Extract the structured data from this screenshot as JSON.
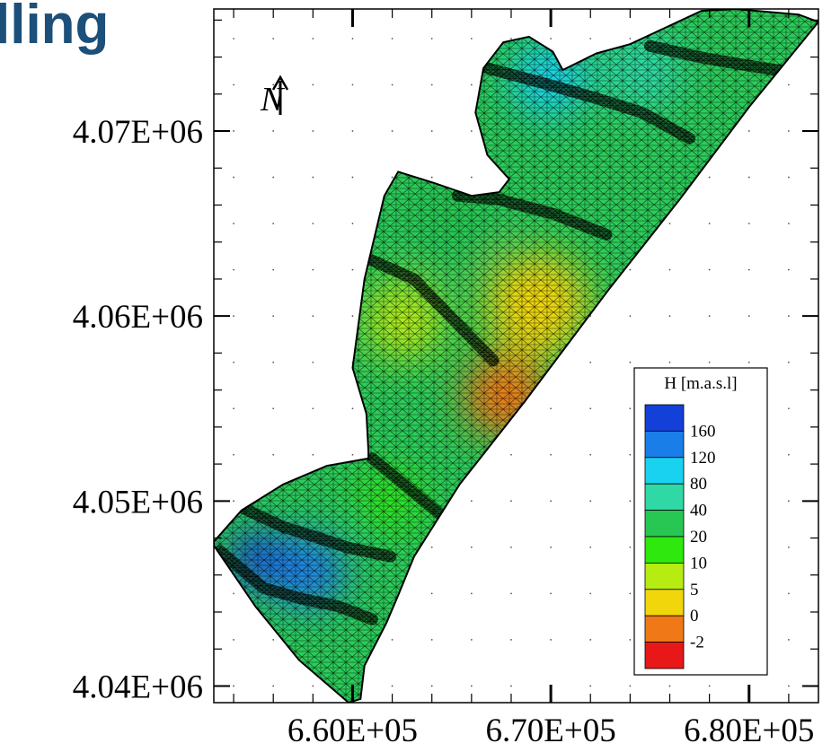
{
  "slide": {
    "title_fragment": "lling"
  },
  "colors": {
    "title": "#1c4f79",
    "mesh_line": "#000000",
    "background": "#ffffff"
  },
  "chart_data": {
    "type": "heatmap",
    "title": "",
    "xlabel": "",
    "ylabel": "",
    "xlim": [
      653000,
      683500
    ],
    "ylim": [
      4039100,
      4076600
    ],
    "x_ticks": [
      {
        "value": 660000,
        "label": "6.60E+05"
      },
      {
        "value": 670000,
        "label": "6.70E+05"
      },
      {
        "value": 680000,
        "label": "6.80E+05"
      }
    ],
    "y_ticks": [
      {
        "value": 4040000,
        "label": "4.04E+06"
      },
      {
        "value": 4050000,
        "label": "4.05E+06"
      },
      {
        "value": 4060000,
        "label": "4.06E+06"
      },
      {
        "value": 4070000,
        "label": "4.07E+06"
      }
    ],
    "grid": true,
    "grid_style": "dotted points",
    "north_arrow_label": "N",
    "legend": {
      "title": "H [m.a.s.l]",
      "placement": "bottom-right",
      "entries": [
        {
          "label": "160",
          "color": "#1340d8"
        },
        {
          "label": "120",
          "color": "#1a7ee8"
        },
        {
          "label": "80",
          "color": "#18d2f0"
        },
        {
          "label": "40",
          "color": "#2fd8a4"
        },
        {
          "label": "20",
          "color": "#28c652"
        },
        {
          "label": "10",
          "color": "#2ee80e"
        },
        {
          "label": "5",
          "color": "#b6ec12"
        },
        {
          "label": "0",
          "color": "#f2d60c"
        },
        {
          "label": "-2",
          "color": "#f07816"
        },
        {
          "label": "",
          "color": "#e81818"
        }
      ]
    },
    "domain_outline_xy": [
      [
        653000,
        4047800
      ],
      [
        654400,
        4049500
      ],
      [
        656500,
        4050900
      ],
      [
        658700,
        4051900
      ],
      [
        660800,
        4052300
      ],
      [
        660800,
        4052700
      ],
      [
        660700,
        4054700
      ],
      [
        660000,
        4057200
      ],
      [
        660600,
        4062000
      ],
      [
        661600,
        4066500
      ],
      [
        662300,
        4067800
      ],
      [
        664100,
        4067200
      ],
      [
        666000,
        4066500
      ],
      [
        667400,
        4066700
      ],
      [
        667900,
        4067400
      ],
      [
        666800,
        4068700
      ],
      [
        666200,
        4071000
      ],
      [
        666600,
        4073400
      ],
      [
        667600,
        4074800
      ],
      [
        668900,
        4075100
      ],
      [
        670100,
        4074300
      ],
      [
        670600,
        4073300
      ],
      [
        672300,
        4074200
      ],
      [
        674000,
        4074700
      ],
      [
        675800,
        4075600
      ],
      [
        677600,
        4076500
      ],
      [
        679300,
        4076600
      ],
      [
        682500,
        4076300
      ],
      [
        683500,
        4075900
      ],
      [
        680000,
        4071300
      ],
      [
        676500,
        4066300
      ],
      [
        672900,
        4061400
      ],
      [
        668700,
        4055400
      ],
      [
        665400,
        4050900
      ],
      [
        663100,
        4047000
      ],
      [
        662300,
        4044900
      ],
      [
        661700,
        4043400
      ],
      [
        660600,
        4041100
      ],
      [
        660400,
        4039300
      ],
      [
        659800,
        4039100
      ],
      [
        657300,
        4041400
      ],
      [
        655100,
        4044300
      ],
      [
        653000,
        4047600
      ]
    ],
    "head_zones": [
      {
        "value": 160,
        "center": [
          655300,
          4046800
        ],
        "radius": 1500
      },
      {
        "value": 120,
        "center": [
          657700,
          4046200
        ],
        "radius": 1900
      },
      {
        "value": 80,
        "center": [
          669900,
          4072800
        ],
        "radius": 1900
      },
      {
        "value": 40,
        "center": [
          674600,
          4073300
        ],
        "radius": 2100
      },
      {
        "value": 20,
        "center": [
          665000,
          4065200
        ],
        "radius": 2300
      },
      {
        "value": 10,
        "center": [
          661900,
          4050000
        ],
        "radius": 1500
      },
      {
        "value": 5,
        "center": [
          662600,
          4059800
        ],
        "radius": 2000
      },
      {
        "value": 0,
        "center": [
          669300,
          4060600
        ],
        "radius": 2600
      },
      {
        "value": -2,
        "center": [
          667700,
          4055700
        ],
        "radius": 2100
      }
    ],
    "contour_lines": [
      [
        [
          654500,
          4049600
        ],
        [
          656500,
          4048600
        ],
        [
          658300,
          4048000
        ],
        [
          659700,
          4047500
        ],
        [
          661900,
          4047000
        ]
      ],
      [
        [
          653300,
          4047300
        ],
        [
          655500,
          4045300
        ],
        [
          657500,
          4044700
        ],
        [
          659300,
          4044300
        ],
        [
          661000,
          4043600
        ]
      ],
      [
        [
          661000,
          4052300
        ],
        [
          662600,
          4050900
        ],
        [
          663600,
          4050000
        ],
        [
          664500,
          4049200
        ]
      ],
      [
        [
          661000,
          4063000
        ],
        [
          663100,
          4062000
        ],
        [
          665000,
          4059900
        ],
        [
          667100,
          4057600
        ]
      ],
      [
        [
          665300,
          4066500
        ],
        [
          667400,
          4066300
        ],
        [
          670200,
          4065500
        ],
        [
          672800,
          4064400
        ]
      ],
      [
        [
          666800,
          4073400
        ],
        [
          669600,
          4072600
        ],
        [
          672200,
          4071800
        ],
        [
          674600,
          4071000
        ],
        [
          677000,
          4069600
        ]
      ],
      [
        [
          675000,
          4074600
        ],
        [
          677500,
          4074000
        ],
        [
          679600,
          4073600
        ],
        [
          682000,
          4073200
        ]
      ]
    ]
  }
}
